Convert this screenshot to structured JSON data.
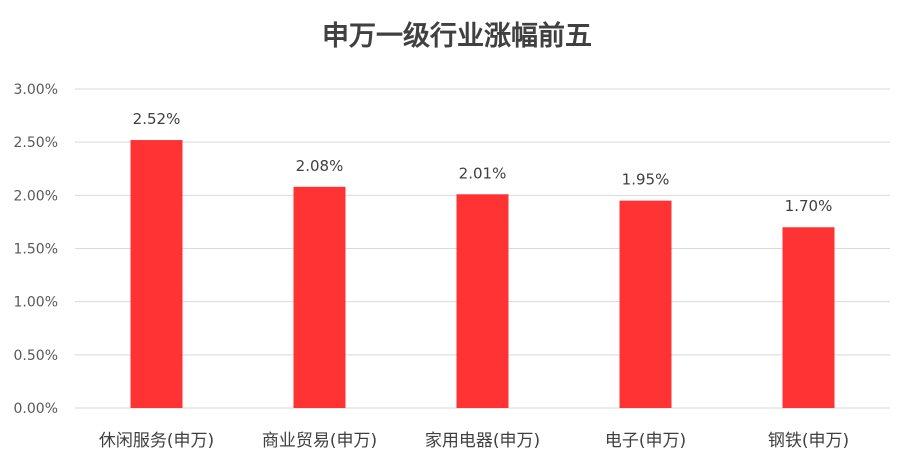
{
  "chart_data": {
    "type": "bar",
    "title": "申万一级行业涨幅前五",
    "xlabel": "",
    "ylabel": "",
    "categories": [
      "休闲服务(申万)",
      "商业贸易(申万)",
      "家用电器(申万)",
      "电子(申万)",
      "钢铁(申万)"
    ],
    "values": [
      2.52,
      2.08,
      2.01,
      1.95,
      1.7
    ],
    "data_labels": [
      "2.52%",
      "2.08%",
      "2.01%",
      "1.95%",
      "1.70%"
    ],
    "ylim": [
      0,
      3.0
    ],
    "yticks": [
      0,
      0.5,
      1.0,
      1.5,
      2.0,
      2.5,
      3.0
    ],
    "ytick_labels": [
      "0.00%",
      "0.50%",
      "1.00%",
      "1.50%",
      "2.00%",
      "2.50%",
      "3.00%"
    ],
    "grid": true,
    "legend": "none",
    "bar_color": "#FF3333",
    "grid_color": "#D9D9D9"
  }
}
